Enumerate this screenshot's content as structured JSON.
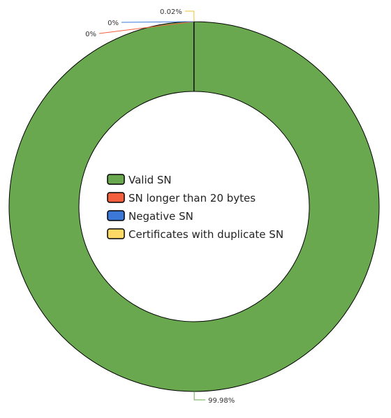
{
  "chart_data": {
    "type": "pie",
    "donut": true,
    "legend_position": "center",
    "series": [
      {
        "name": "Valid SN",
        "value": 99.98,
        "label": "99.98%",
        "color": "#6aa84f"
      },
      {
        "name": "SN longer than 20 bytes",
        "value": 0,
        "label": "0%",
        "color": "#f4603e"
      },
      {
        "name": "Negative SN",
        "value": 0,
        "label": "0%",
        "color": "#3c78d8"
      },
      {
        "name": "Certificates with duplicate SN",
        "value": 0.02,
        "label": "0.02%",
        "color": "#ffd966"
      }
    ]
  }
}
